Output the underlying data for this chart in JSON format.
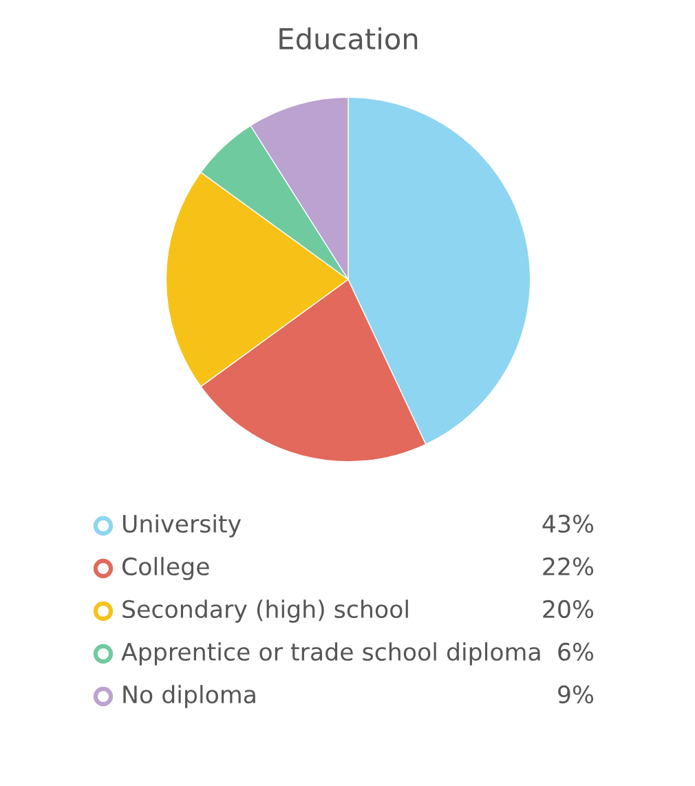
{
  "chart_data": {
    "type": "pie",
    "title": "Education",
    "categories": [
      "University",
      "College",
      "Secondary (high) school",
      "Apprentice or trade school diploma",
      "No diploma"
    ],
    "values": [
      43,
      22,
      20,
      6,
      9
    ],
    "colors": [
      "#8dd5f1",
      "#e2695b",
      "#f7c218",
      "#6fcb9f",
      "#bba2d0"
    ],
    "value_labels": [
      "43%",
      "22%",
      "20%",
      "6%",
      "9%"
    ],
    "legend": "bottom"
  }
}
